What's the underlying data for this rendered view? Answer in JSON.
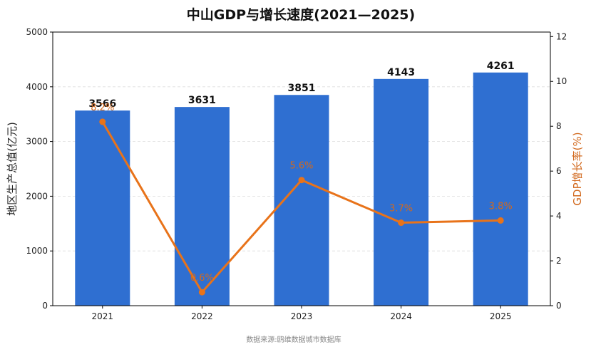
{
  "chart_data": {
    "type": "bar",
    "title": "中山GDP与增长速度(2021—2025)",
    "categories": [
      "2021",
      "2022",
      "2023",
      "2024",
      "2025"
    ],
    "series": [
      {
        "name": "",
        "type": "bar",
        "axis": "left",
        "values": [
          3566,
          3631,
          3851,
          4143,
          4261
        ],
        "labels": [
          "3566",
          "3631",
          "3851",
          "4143",
          "4261"
        ]
      },
      {
        "name": "",
        "type": "line",
        "axis": "right",
        "values": [
          8.2,
          0.6,
          5.6,
          3.7,
          3.8
        ],
        "labels": [
          "8.2%",
          "0.6%",
          "5.6%",
          "3.7%",
          "3.8%"
        ]
      }
    ],
    "ylabel": "地区生产总值(亿元)",
    "y2label": "GDP增长率(%)",
    "ylim": [
      0,
      5000
    ],
    "y2lim": [
      0,
      12.2
    ],
    "yticks": [
      "0",
      "1000",
      "2000",
      "3000",
      "4000",
      "5000"
    ],
    "y2ticks": [
      "0",
      "2",
      "4",
      "6",
      "8",
      "10",
      "12"
    ],
    "grid": true,
    "source": "数据来源:鸥维数据城市数据库",
    "colors": {
      "bar": "#2f6fd1",
      "line": "#e8731a",
      "line_label": "#d2691e",
      "right_axis": "#d2691e"
    }
  }
}
